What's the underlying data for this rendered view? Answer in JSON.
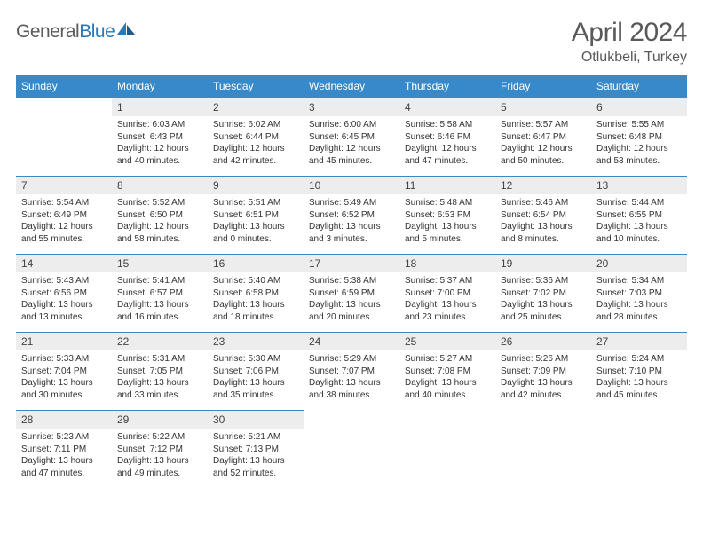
{
  "logo": {
    "text1": "General",
    "text2": "Blue"
  },
  "title": "April 2024",
  "location": "Otlukbeli, Turkey",
  "colors": {
    "header_bg": "#3789c9",
    "header_text": "#ffffff",
    "daynum_bg": "#ededed",
    "border": "#3789c9",
    "body_text": "#333333",
    "title_text": "#595959"
  },
  "weekdays": [
    "Sunday",
    "Monday",
    "Tuesday",
    "Wednesday",
    "Thursday",
    "Friday",
    "Saturday"
  ],
  "weeks": [
    [
      null,
      {
        "n": "1",
        "sr": "6:03 AM",
        "ss": "6:43 PM",
        "dl": "12 hours and 40 minutes."
      },
      {
        "n": "2",
        "sr": "6:02 AM",
        "ss": "6:44 PM",
        "dl": "12 hours and 42 minutes."
      },
      {
        "n": "3",
        "sr": "6:00 AM",
        "ss": "6:45 PM",
        "dl": "12 hours and 45 minutes."
      },
      {
        "n": "4",
        "sr": "5:58 AM",
        "ss": "6:46 PM",
        "dl": "12 hours and 47 minutes."
      },
      {
        "n": "5",
        "sr": "5:57 AM",
        "ss": "6:47 PM",
        "dl": "12 hours and 50 minutes."
      },
      {
        "n": "6",
        "sr": "5:55 AM",
        "ss": "6:48 PM",
        "dl": "12 hours and 53 minutes."
      }
    ],
    [
      {
        "n": "7",
        "sr": "5:54 AM",
        "ss": "6:49 PM",
        "dl": "12 hours and 55 minutes."
      },
      {
        "n": "8",
        "sr": "5:52 AM",
        "ss": "6:50 PM",
        "dl": "12 hours and 58 minutes."
      },
      {
        "n": "9",
        "sr": "5:51 AM",
        "ss": "6:51 PM",
        "dl": "13 hours and 0 minutes."
      },
      {
        "n": "10",
        "sr": "5:49 AM",
        "ss": "6:52 PM",
        "dl": "13 hours and 3 minutes."
      },
      {
        "n": "11",
        "sr": "5:48 AM",
        "ss": "6:53 PM",
        "dl": "13 hours and 5 minutes."
      },
      {
        "n": "12",
        "sr": "5:46 AM",
        "ss": "6:54 PM",
        "dl": "13 hours and 8 minutes."
      },
      {
        "n": "13",
        "sr": "5:44 AM",
        "ss": "6:55 PM",
        "dl": "13 hours and 10 minutes."
      }
    ],
    [
      {
        "n": "14",
        "sr": "5:43 AM",
        "ss": "6:56 PM",
        "dl": "13 hours and 13 minutes."
      },
      {
        "n": "15",
        "sr": "5:41 AM",
        "ss": "6:57 PM",
        "dl": "13 hours and 16 minutes."
      },
      {
        "n": "16",
        "sr": "5:40 AM",
        "ss": "6:58 PM",
        "dl": "13 hours and 18 minutes."
      },
      {
        "n": "17",
        "sr": "5:38 AM",
        "ss": "6:59 PM",
        "dl": "13 hours and 20 minutes."
      },
      {
        "n": "18",
        "sr": "5:37 AM",
        "ss": "7:00 PM",
        "dl": "13 hours and 23 minutes."
      },
      {
        "n": "19",
        "sr": "5:36 AM",
        "ss": "7:02 PM",
        "dl": "13 hours and 25 minutes."
      },
      {
        "n": "20",
        "sr": "5:34 AM",
        "ss": "7:03 PM",
        "dl": "13 hours and 28 minutes."
      }
    ],
    [
      {
        "n": "21",
        "sr": "5:33 AM",
        "ss": "7:04 PM",
        "dl": "13 hours and 30 minutes."
      },
      {
        "n": "22",
        "sr": "5:31 AM",
        "ss": "7:05 PM",
        "dl": "13 hours and 33 minutes."
      },
      {
        "n": "23",
        "sr": "5:30 AM",
        "ss": "7:06 PM",
        "dl": "13 hours and 35 minutes."
      },
      {
        "n": "24",
        "sr": "5:29 AM",
        "ss": "7:07 PM",
        "dl": "13 hours and 38 minutes."
      },
      {
        "n": "25",
        "sr": "5:27 AM",
        "ss": "7:08 PM",
        "dl": "13 hours and 40 minutes."
      },
      {
        "n": "26",
        "sr": "5:26 AM",
        "ss": "7:09 PM",
        "dl": "13 hours and 42 minutes."
      },
      {
        "n": "27",
        "sr": "5:24 AM",
        "ss": "7:10 PM",
        "dl": "13 hours and 45 minutes."
      }
    ],
    [
      {
        "n": "28",
        "sr": "5:23 AM",
        "ss": "7:11 PM",
        "dl": "13 hours and 47 minutes."
      },
      {
        "n": "29",
        "sr": "5:22 AM",
        "ss": "7:12 PM",
        "dl": "13 hours and 49 minutes."
      },
      {
        "n": "30",
        "sr": "5:21 AM",
        "ss": "7:13 PM",
        "dl": "13 hours and 52 minutes."
      },
      null,
      null,
      null,
      null
    ]
  ],
  "labels": {
    "sunrise": "Sunrise:",
    "sunset": "Sunset:",
    "daylight": "Daylight:"
  }
}
